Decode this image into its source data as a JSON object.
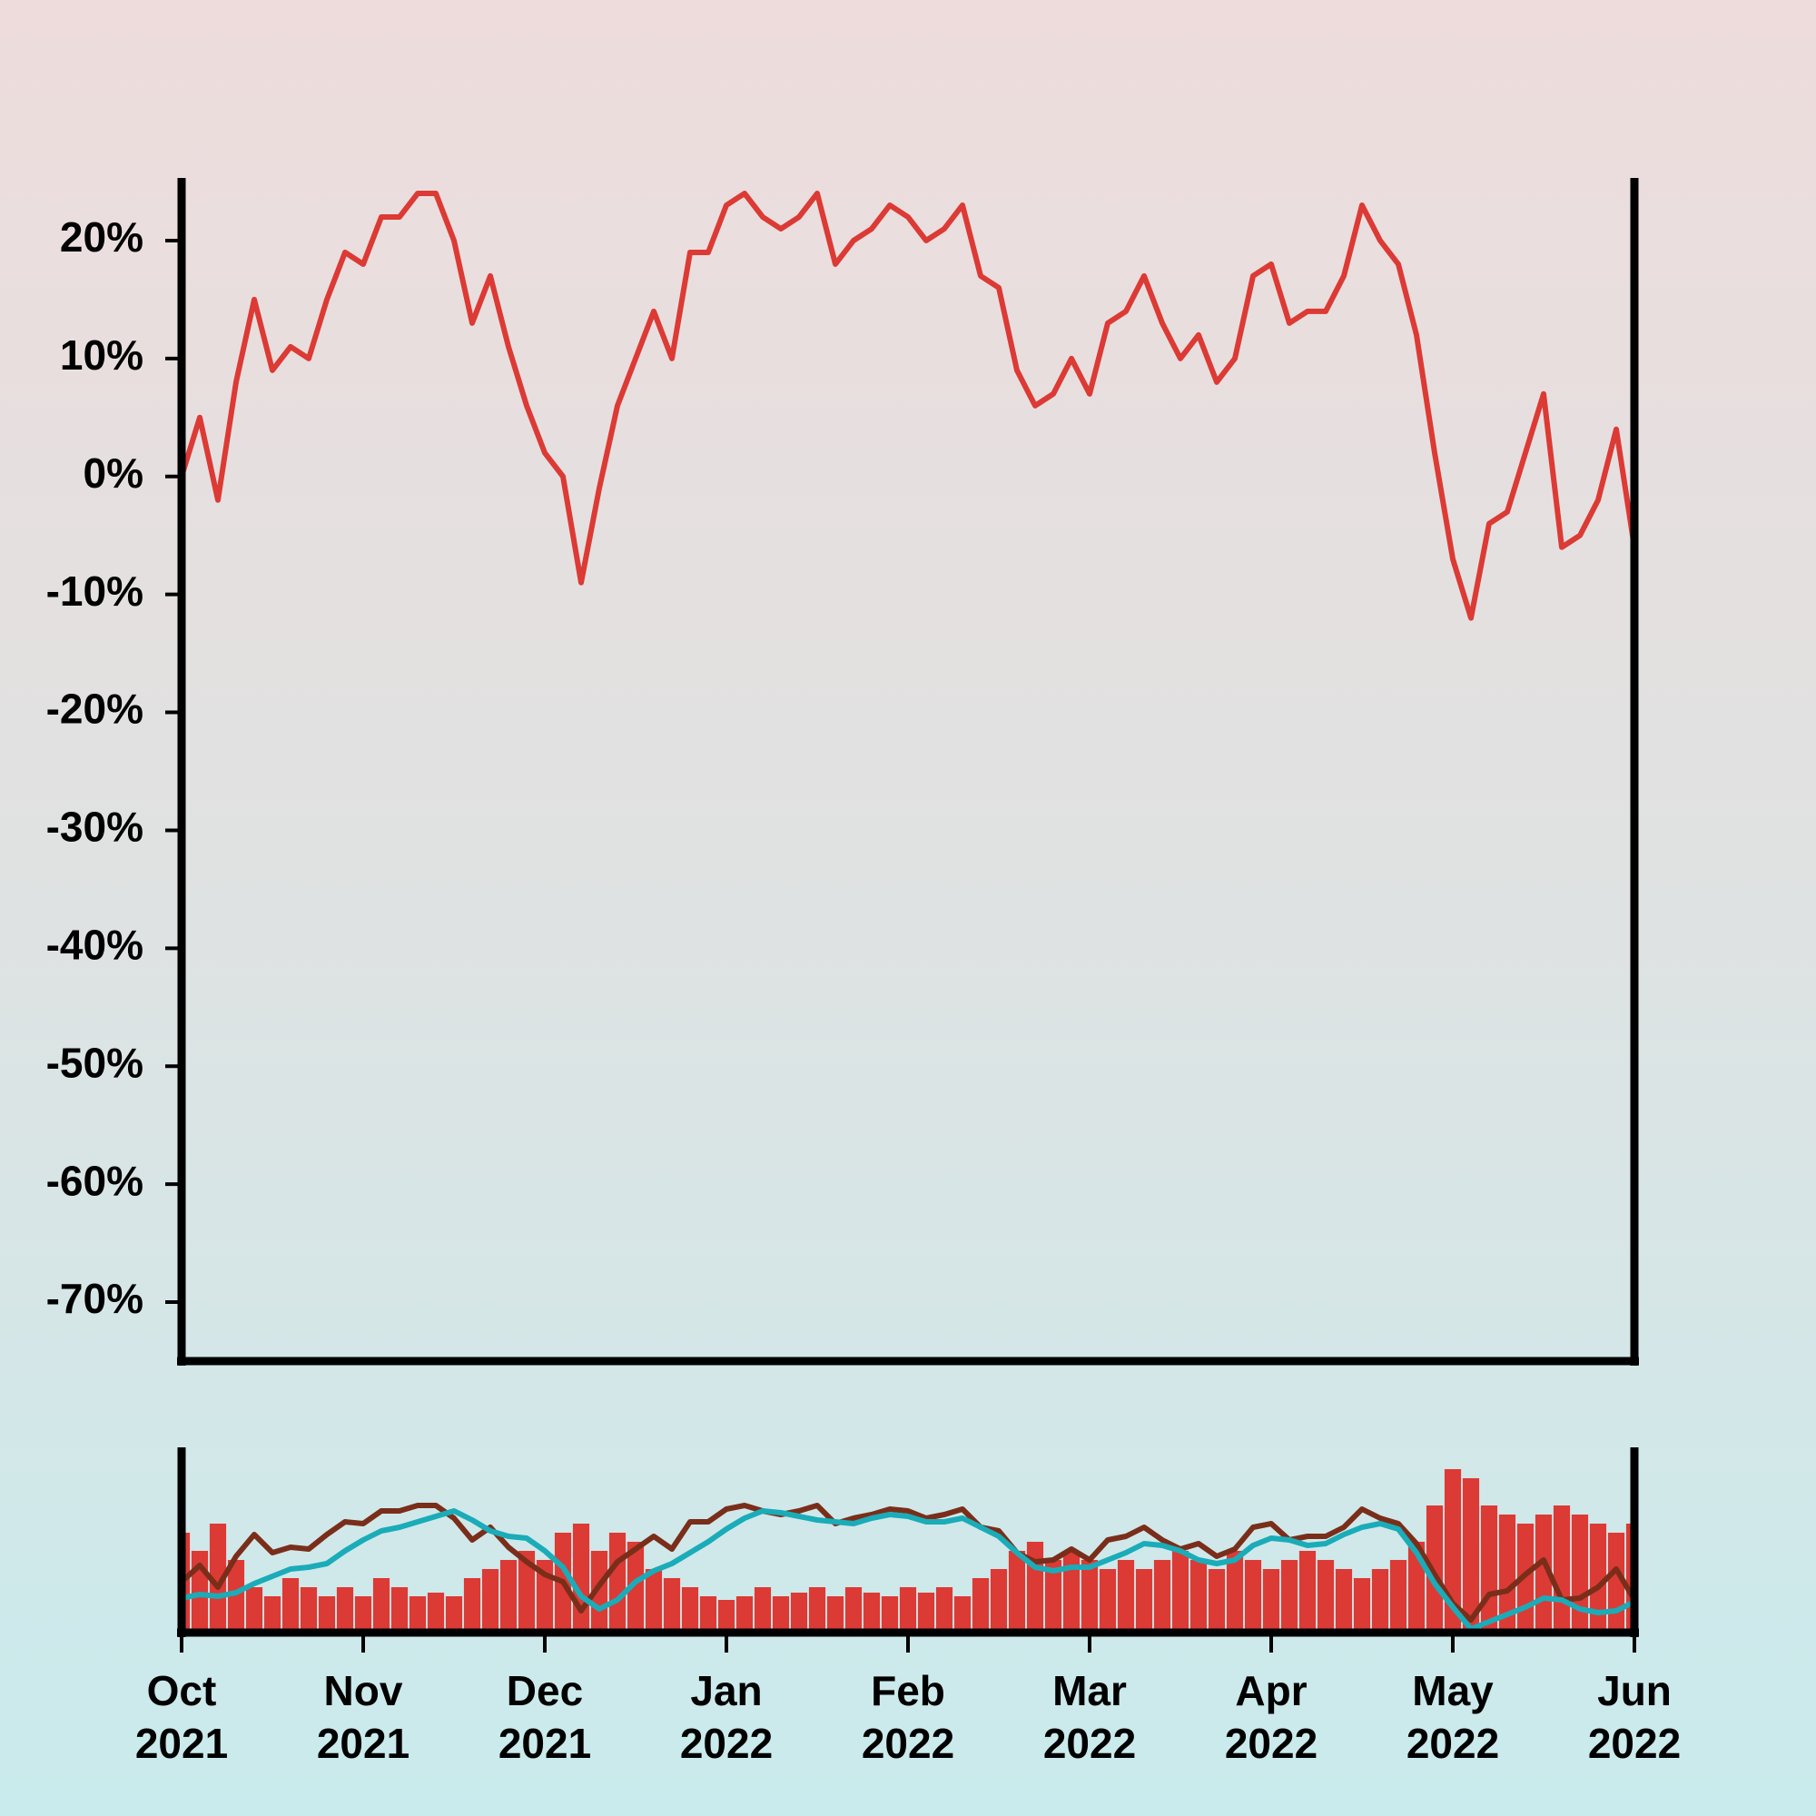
{
  "chart_data": [
    {
      "type": "line",
      "color": "#dc3a35",
      "x": [
        0,
        0.1,
        0.2,
        0.3,
        0.4,
        0.5,
        0.6,
        0.7,
        0.8,
        0.9,
        1,
        1.1,
        1.2,
        1.3,
        1.4,
        1.5,
        1.6,
        1.7,
        1.8,
        1.9,
        2,
        2.1,
        2.2,
        2.3,
        2.4,
        2.5,
        2.6,
        2.7,
        2.8,
        2.9,
        3,
        3.1,
        3.2,
        3.3,
        3.4,
        3.5,
        3.6,
        3.7,
        3.8,
        3.9,
        4,
        4.1,
        4.2,
        4.3,
        4.4,
        4.5,
        4.6,
        4.7,
        4.8,
        4.9,
        5,
        5.1,
        5.2,
        5.3,
        5.4,
        5.5,
        5.6,
        5.7,
        5.8,
        5.9,
        6,
        6.1,
        6.2,
        6.3,
        6.4,
        6.5,
        6.6,
        6.7,
        6.8,
        6.9,
        7,
        7.1,
        7.2,
        7.3,
        7.4,
        7.5,
        7.6,
        7.7,
        7.8,
        7.9,
        8
      ],
      "values": [
        0,
        5,
        -2,
        8,
        15,
        9,
        11,
        10,
        15,
        19,
        18,
        22,
        22,
        24,
        24,
        20,
        13,
        17,
        11,
        6,
        2,
        0,
        -9,
        -1,
        6,
        10,
        14,
        10,
        19,
        19,
        23,
        24,
        22,
        21,
        22,
        24,
        18,
        20,
        21,
        23,
        22,
        20,
        21,
        23,
        17,
        16,
        9,
        6,
        7,
        10,
        7,
        13,
        14,
        17,
        13,
        10,
        12,
        8,
        10,
        17,
        18,
        13,
        14,
        14,
        17,
        23,
        20,
        18,
        12,
        2,
        -7,
        -12,
        -4,
        -3,
        2,
        7,
        -6,
        -5,
        -2,
        4,
        -6
      ],
      "xlim": [
        0,
        8
      ],
      "ylim": [
        -75,
        25
      ],
      "yticks": [
        {
          "value": 20,
          "label": "20%"
        },
        {
          "value": 10,
          "label": "10%"
        },
        {
          "value": 0,
          "label": "0%"
        },
        {
          "value": -10,
          "label": "-10%"
        },
        {
          "value": -20,
          "label": "-20%"
        },
        {
          "value": -30,
          "label": "-30%"
        },
        {
          "value": -40,
          "label": "-40%"
        },
        {
          "value": -50,
          "label": "-50%"
        },
        {
          "value": -60,
          "label": "-60%"
        },
        {
          "value": -70,
          "label": "-70%"
        }
      ]
    },
    {
      "type": "bar",
      "x": [
        0,
        0.1,
        0.2,
        0.3,
        0.4,
        0.5,
        0.6,
        0.7,
        0.8,
        0.9,
        1,
        1.1,
        1.2,
        1.3,
        1.4,
        1.5,
        1.6,
        1.7,
        1.8,
        1.9,
        2,
        2.1,
        2.2,
        2.3,
        2.4,
        2.5,
        2.6,
        2.7,
        2.8,
        2.9,
        3,
        3.1,
        3.2,
        3.3,
        3.4,
        3.5,
        3.6,
        3.7,
        3.8,
        3.9,
        4,
        4.1,
        4.2,
        4.3,
        4.4,
        4.5,
        4.6,
        4.7,
        4.8,
        4.9,
        5,
        5.1,
        5.2,
        5.3,
        5.4,
        5.5,
        5.6,
        5.7,
        5.8,
        5.9,
        6,
        6.1,
        6.2,
        6.3,
        6.4,
        6.5,
        6.6,
        6.7,
        6.8,
        6.9,
        7,
        7.1,
        7.2,
        7.3,
        7.4,
        7.5,
        7.6,
        7.7,
        7.8,
        7.9,
        8
      ],
      "series": [
        {
          "type": "bar",
          "color": "#dc3a35",
          "values": [
            55,
            45,
            60,
            40,
            25,
            20,
            30,
            25,
            20,
            25,
            20,
            30,
            25,
            20,
            22,
            20,
            30,
            35,
            40,
            45,
            40,
            55,
            60,
            45,
            55,
            50,
            35,
            30,
            25,
            20,
            18,
            20,
            25,
            20,
            22,
            25,
            20,
            25,
            22,
            20,
            25,
            22,
            25,
            20,
            30,
            35,
            45,
            50,
            40,
            45,
            40,
            35,
            40,
            35,
            40,
            45,
            40,
            35,
            45,
            40,
            35,
            40,
            45,
            40,
            35,
            30,
            35,
            40,
            50,
            70,
            90,
            85,
            70,
            65,
            60,
            65,
            70,
            65,
            60,
            55,
            60
          ]
        },
        {
          "type": "line",
          "color": "#7a2e1a",
          "values": [
            28,
            37,
            25,
            42,
            54,
            44,
            47,
            46,
            54,
            61,
            60,
            67,
            67,
            70,
            70,
            63,
            51,
            58,
            47,
            39,
            32,
            28,
            12,
            26,
            39,
            46,
            53,
            46,
            61,
            61,
            68,
            70,
            67,
            65,
            67,
            70,
            60,
            63,
            65,
            68,
            67,
            63,
            65,
            68,
            58,
            56,
            44,
            39,
            40,
            46,
            40,
            51,
            53,
            58,
            51,
            46,
            49,
            42,
            46,
            58,
            60,
            51,
            53,
            53,
            58,
            68,
            63,
            60,
            49,
            32,
            16,
            7,
            21,
            23,
            32,
            40,
            18,
            19,
            25,
            35,
            18
          ]
        },
        {
          "type": "line",
          "color": "#1aacb8",
          "values": [
            19,
            21,
            20,
            22,
            27,
            31,
            35,
            36,
            38,
            45,
            51,
            56,
            58,
            61,
            64,
            67,
            62,
            56,
            53,
            52,
            45,
            36,
            20,
            13,
            18,
            28,
            34,
            38,
            44,
            50,
            57,
            63,
            67,
            66,
            64,
            62,
            61,
            60,
            63,
            65,
            64,
            61,
            61,
            63,
            58,
            53,
            44,
            36,
            34,
            36,
            36,
            40,
            44,
            49,
            48,
            45,
            40,
            38,
            40,
            48,
            52,
            51,
            48,
            49,
            54,
            58,
            60,
            57,
            44,
            27,
            14,
            2,
            6,
            10,
            14,
            19,
            18,
            13,
            11,
            12,
            17
          ]
        }
      ],
      "xlim": [
        0,
        8
      ],
      "ylim": [
        0,
        100
      ],
      "xticks": [
        {
          "value": 0,
          "label": "Oct 2021"
        },
        {
          "value": 1,
          "label": "Nov 2021"
        },
        {
          "value": 2,
          "label": "Dec 2021"
        },
        {
          "value": 3,
          "label": "Jan 2022"
        },
        {
          "value": 4,
          "label": "Feb 2022"
        },
        {
          "value": 5,
          "label": "Mar 2022"
        },
        {
          "value": 6,
          "label": "Apr 2022"
        },
        {
          "value": 7,
          "label": "May 2022"
        },
        {
          "value": 8,
          "label": "Jun 2022"
        }
      ]
    }
  ]
}
